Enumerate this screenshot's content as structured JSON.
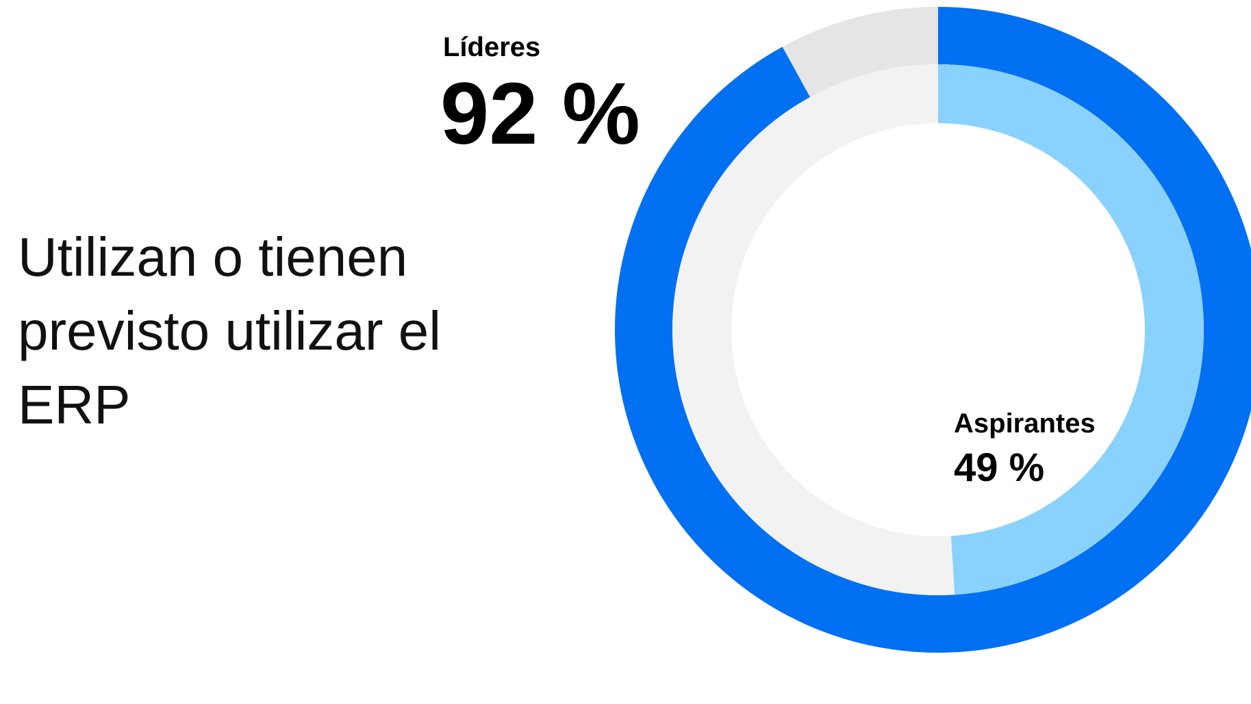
{
  "chart_data": {
    "type": "donut",
    "title": "Utilizan o tienen previsto utilizar el ERP",
    "categories": [
      "Líderes",
      "Aspirantes"
    ],
    "values": [
      92,
      49
    ],
    "value_labels": [
      "92 %",
      "49 %"
    ],
    "colors": [
      "#0070f2",
      "#89d1ff"
    ],
    "track_colors": [
      "#e5e5e5",
      "#f2f2f2"
    ]
  }
}
